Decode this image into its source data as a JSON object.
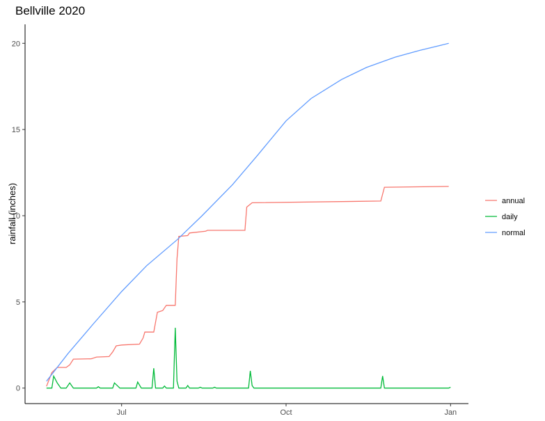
{
  "chart_data": {
    "type": "line",
    "title": "Bellville 2020",
    "xlabel": "",
    "ylabel": "rainfall (inches)",
    "x_ticks": [
      {
        "label": "Jul",
        "date": "2020-07-01"
      },
      {
        "label": "Oct",
        "date": "2020-10-01"
      },
      {
        "label": "Jan",
        "date": "2021-01-01"
      }
    ],
    "y_ticks": [
      0,
      5,
      10,
      15,
      20
    ],
    "xlim": [
      "2020-05-08",
      "2021-01-11"
    ],
    "ylim": [
      -0.9,
      21.1
    ],
    "grid": false,
    "legend_position": "right",
    "series": [
      {
        "name": "annual",
        "color": "#F8766D",
        "points": [
          [
            "2020-05-20",
            0.1
          ],
          [
            "2020-05-23",
            0.9
          ],
          [
            "2020-05-26",
            1.2
          ],
          [
            "2020-05-31",
            1.2
          ],
          [
            "2020-06-02",
            1.35
          ],
          [
            "2020-06-04",
            1.68
          ],
          [
            "2020-06-14",
            1.7
          ],
          [
            "2020-06-17",
            1.8
          ],
          [
            "2020-06-24",
            1.83
          ],
          [
            "2020-06-26",
            2.1
          ],
          [
            "2020-06-28",
            2.45
          ],
          [
            "2020-07-01",
            2.5
          ],
          [
            "2020-07-11",
            2.55
          ],
          [
            "2020-07-13",
            2.9
          ],
          [
            "2020-07-14",
            3.25
          ],
          [
            "2020-07-19",
            3.25
          ],
          [
            "2020-07-21",
            4.4
          ],
          [
            "2020-07-24",
            4.5
          ],
          [
            "2020-07-26",
            4.8
          ],
          [
            "2020-07-31",
            4.8
          ],
          [
            "2020-08-01",
            7.5
          ],
          [
            "2020-08-02",
            8.8
          ],
          [
            "2020-08-07",
            8.85
          ],
          [
            "2020-08-08",
            9.0
          ],
          [
            "2020-08-17",
            9.1
          ],
          [
            "2020-08-18",
            9.15
          ],
          [
            "2020-09-08",
            9.15
          ],
          [
            "2020-09-09",
            10.5
          ],
          [
            "2020-09-12",
            10.75
          ],
          [
            "2020-11-23",
            10.85
          ],
          [
            "2020-11-24",
            11.25
          ],
          [
            "2020-11-25",
            11.65
          ],
          [
            "2020-12-31",
            11.7
          ]
        ]
      },
      {
        "name": "daily",
        "color": "#00BA38",
        "points": [
          [
            "2020-05-20",
            0.0
          ],
          [
            "2020-05-23",
            0.0
          ],
          [
            "2020-05-24",
            0.7
          ],
          [
            "2020-05-26",
            0.3
          ],
          [
            "2020-05-28",
            0.0
          ],
          [
            "2020-05-31",
            0.0
          ],
          [
            "2020-06-02",
            0.3
          ],
          [
            "2020-06-04",
            0.0
          ],
          [
            "2020-06-17",
            0.0
          ],
          [
            "2020-06-18",
            0.08
          ],
          [
            "2020-06-19",
            0.0
          ],
          [
            "2020-06-26",
            0.0
          ],
          [
            "2020-06-27",
            0.3
          ],
          [
            "2020-06-29",
            0.1
          ],
          [
            "2020-06-30",
            0.0
          ],
          [
            "2020-07-09",
            0.0
          ],
          [
            "2020-07-10",
            0.35
          ],
          [
            "2020-07-12",
            0.0
          ],
          [
            "2020-07-18",
            0.0
          ],
          [
            "2020-07-19",
            1.15
          ],
          [
            "2020-07-20",
            0.0
          ],
          [
            "2020-07-24",
            0.0
          ],
          [
            "2020-07-25",
            0.12
          ],
          [
            "2020-07-26",
            0.0
          ],
          [
            "2020-07-30",
            0.0
          ],
          [
            "2020-07-31",
            3.5
          ],
          [
            "2020-08-01",
            0.4
          ],
          [
            "2020-08-02",
            0.0
          ],
          [
            "2020-08-06",
            0.0
          ],
          [
            "2020-08-07",
            0.15
          ],
          [
            "2020-08-08",
            0.0
          ],
          [
            "2020-08-13",
            0.0
          ],
          [
            "2020-08-14",
            0.05
          ],
          [
            "2020-08-15",
            0.0
          ],
          [
            "2020-08-21",
            0.0
          ],
          [
            "2020-08-22",
            0.05
          ],
          [
            "2020-08-23",
            0.0
          ],
          [
            "2020-09-10",
            0.0
          ],
          [
            "2020-09-11",
            1.0
          ],
          [
            "2020-09-12",
            0.15
          ],
          [
            "2020-09-13",
            0.0
          ],
          [
            "2020-11-23",
            0.0
          ],
          [
            "2020-11-24",
            0.7
          ],
          [
            "2020-11-25",
            0.0
          ],
          [
            "2020-12-31",
            0.0
          ],
          [
            "2021-01-01",
            0.05
          ]
        ]
      },
      {
        "name": "normal",
        "color": "#619CFF",
        "points": [
          [
            "2020-05-20",
            0.4
          ],
          [
            "2020-06-01",
            2.0
          ],
          [
            "2020-06-15",
            3.7
          ],
          [
            "2020-07-01",
            5.6
          ],
          [
            "2020-07-15",
            7.1
          ],
          [
            "2020-08-01",
            8.6
          ],
          [
            "2020-08-15",
            10.0
          ],
          [
            "2020-09-01",
            11.8
          ],
          [
            "2020-09-15",
            13.5
          ],
          [
            "2020-10-01",
            15.5
          ],
          [
            "2020-10-15",
            16.8
          ],
          [
            "2020-11-01",
            17.9
          ],
          [
            "2020-11-15",
            18.6
          ],
          [
            "2020-12-01",
            19.2
          ],
          [
            "2020-12-15",
            19.6
          ],
          [
            "2020-12-31",
            20.0
          ]
        ]
      }
    ]
  }
}
